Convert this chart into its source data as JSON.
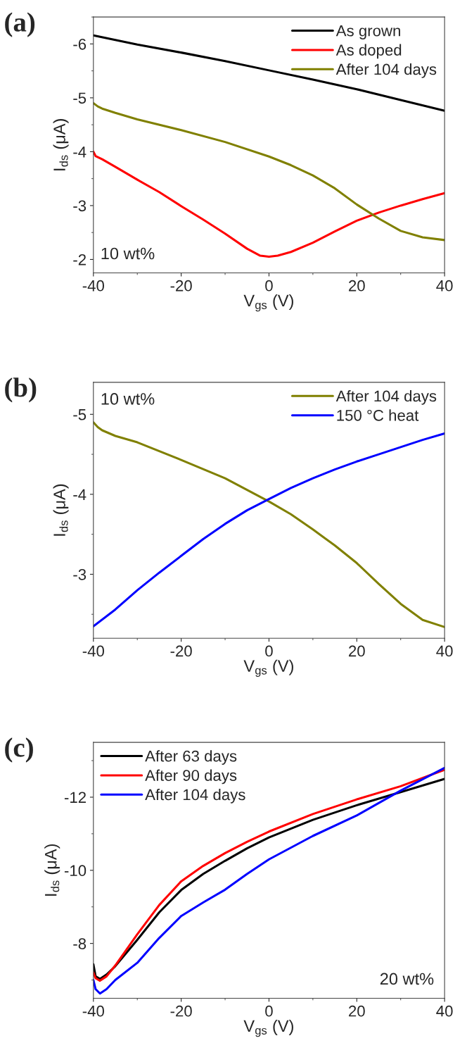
{
  "chart_data": [
    {
      "type": "line",
      "title": "(a)",
      "xlabel": "V$_{gs}$ (V)",
      "ylabel": "I$_{ds}$ (μA)",
      "annotations": [
        "10 wt%"
      ],
      "xlim": [
        -40,
        40
      ],
      "xticks": [
        -40,
        -20,
        0,
        20,
        40
      ],
      "ylim": [
        -1.75,
        -6.5
      ],
      "yticks": [
        -2,
        -3,
        -4,
        -5,
        -6
      ],
      "legend": "top right",
      "grid": false,
      "line_style": "solid",
      "series": [
        {
          "name": "As grown",
          "color": "#000000",
          "x": [
            -40,
            -30,
            -20,
            -10,
            0,
            10,
            20,
            30,
            40
          ],
          "values": [
            -6.16,
            -5.99,
            -5.84,
            -5.68,
            -5.51,
            -5.34,
            -5.16,
            -4.96,
            -4.76
          ]
        },
        {
          "name": "As doped",
          "color": "#ff0000",
          "x": [
            -40,
            -39.5,
            -38,
            -35,
            -30,
            -25,
            -20,
            -15,
            -10,
            -5,
            -2,
            0,
            2,
            5,
            10,
            15,
            20,
            25,
            30,
            35,
            40
          ],
          "values": [
            -4.0,
            -3.92,
            -3.86,
            -3.72,
            -3.48,
            -3.25,
            -2.99,
            -2.74,
            -2.48,
            -2.2,
            -2.07,
            -2.05,
            -2.07,
            -2.14,
            -2.31,
            -2.52,
            -2.72,
            -2.87,
            -3.0,
            -3.12,
            -3.23
          ]
        },
        {
          "name": "After 104 days",
          "color": "#808000",
          "x": [
            -40,
            -39,
            -38,
            -35,
            -30,
            -20,
            -10,
            0,
            5,
            10,
            15,
            20,
            25,
            30,
            35,
            40
          ],
          "values": [
            -4.9,
            -4.84,
            -4.8,
            -4.72,
            -4.6,
            -4.4,
            -4.18,
            -3.91,
            -3.75,
            -3.56,
            -3.32,
            -3.02,
            -2.76,
            -2.53,
            -2.41,
            -2.36
          ]
        }
      ]
    },
    {
      "type": "line",
      "title": "(b)",
      "xlabel": "V$_{gs}$ (V)",
      "ylabel": "I$_{ds}$ (μA)",
      "annotations": [
        "10 wt%"
      ],
      "xlim": [
        -40,
        40
      ],
      "xticks": [
        -40,
        -20,
        0,
        20,
        40
      ],
      "ylim": [
        -2.2,
        -5.4
      ],
      "yticks": [
        -3,
        -4,
        -5
      ],
      "legend": "top right",
      "grid": false,
      "line_style": "solid",
      "series": [
        {
          "name": "After 104 days",
          "color": "#808000",
          "x": [
            -40,
            -39,
            -38,
            -35,
            -30,
            -20,
            -10,
            0,
            5,
            10,
            15,
            20,
            25,
            30,
            35,
            40
          ],
          "values": [
            -4.9,
            -4.84,
            -4.8,
            -4.73,
            -4.65,
            -4.43,
            -4.2,
            -3.91,
            -3.75,
            -3.56,
            -3.36,
            -3.14,
            -2.88,
            -2.63,
            -2.43,
            -2.34
          ]
        },
        {
          "name": "150 °C heat",
          "color": "#0000ff",
          "x": [
            -40,
            -35,
            -30,
            -25,
            -20,
            -15,
            -10,
            -5,
            0,
            5,
            10,
            15,
            20,
            25,
            30,
            35,
            40
          ],
          "values": [
            -2.35,
            -2.56,
            -2.8,
            -3.02,
            -3.23,
            -3.44,
            -3.63,
            -3.8,
            -3.94,
            -4.08,
            -4.2,
            -4.31,
            -4.41,
            -4.5,
            -4.59,
            -4.68,
            -4.76
          ]
        }
      ]
    },
    {
      "type": "line",
      "title": "(c)",
      "xlabel": "V$_{gs}$ (V)",
      "ylabel": "I$_{ds}$ (μA)",
      "annotations": [
        "20 wt%"
      ],
      "xlim": [
        -40,
        40
      ],
      "xticks": [
        -40,
        -20,
        0,
        20,
        40
      ],
      "ylim": [
        -6.5,
        -13.5
      ],
      "yticks": [
        -8,
        -10,
        -12
      ],
      "legend": "top left",
      "grid": false,
      "line_style": "solid",
      "series": [
        {
          "name": "After 63 days",
          "color": "#000000",
          "x": [
            -40,
            -39.5,
            -38.5,
            -37,
            -35,
            -30,
            -25,
            -20,
            -15,
            -10,
            -5,
            0,
            10,
            20,
            30,
            40
          ],
          "values": [
            -7.43,
            -7.1,
            -7.03,
            -7.15,
            -7.38,
            -8.1,
            -8.85,
            -9.46,
            -9.9,
            -10.26,
            -10.6,
            -10.9,
            -11.38,
            -11.78,
            -12.14,
            -12.5
          ]
        },
        {
          "name": "After 90 days",
          "color": "#ff0000",
          "x": [
            -40,
            -39.5,
            -38.5,
            -37,
            -35,
            -30,
            -25,
            -20,
            -15,
            -10,
            -5,
            0,
            10,
            20,
            30,
            40
          ],
          "values": [
            -7.2,
            -7.05,
            -6.98,
            -7.1,
            -7.4,
            -8.25,
            -9.05,
            -9.7,
            -10.12,
            -10.47,
            -10.78,
            -11.06,
            -11.54,
            -11.94,
            -12.3,
            -12.75
          ]
        },
        {
          "name": "After 104 days",
          "color": "#0000ff",
          "x": [
            -40,
            -39.5,
            -38.5,
            -37,
            -35,
            -30,
            -25,
            -20,
            -15,
            -10,
            -5,
            0,
            10,
            20,
            30,
            40
          ],
          "values": [
            -7.0,
            -6.75,
            -6.63,
            -6.75,
            -7.0,
            -7.47,
            -8.15,
            -8.75,
            -9.12,
            -9.47,
            -9.9,
            -10.3,
            -10.94,
            -11.5,
            -12.18,
            -12.8
          ]
        }
      ]
    }
  ]
}
